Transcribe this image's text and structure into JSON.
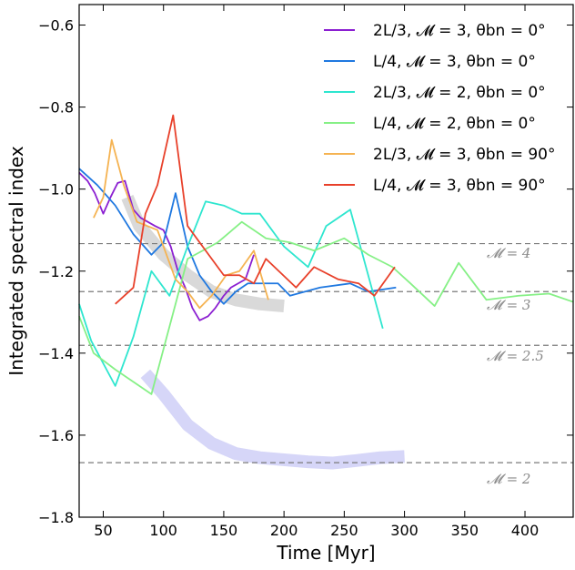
{
  "chart_data": {
    "type": "line",
    "xlabel": "Time [Myr]",
    "ylabel": "Integrated spectral index",
    "xlim": [
      30,
      440
    ],
    "ylim": [
      -1.8,
      -0.55
    ],
    "xticks": [
      50,
      100,
      150,
      200,
      250,
      300,
      350,
      400
    ],
    "yticks": [
      -1.8,
      -1.6,
      -1.4,
      -1.2,
      -1.0,
      -0.8,
      -0.6
    ],
    "ytick_labels": [
      "−1.8",
      "−1.6",
      "−1.4",
      "−1.2",
      "−1.0",
      "−0.8",
      "−0.6"
    ],
    "grid": false,
    "legend_position": "top-right",
    "reference_lines": [
      {
        "label": "𝓜 = 4",
        "y": -1.133
      },
      {
        "label": "𝓜 = 3",
        "y": -1.25
      },
      {
        "label": "𝓜 = 2.5",
        "y": -1.381
      },
      {
        "label": "𝓜 = 2",
        "y": -1.667
      }
    ],
    "bands": [
      {
        "color": "#cccccc",
        "x": [
          70,
          80,
          100,
          120,
          140,
          160,
          180,
          200
        ],
        "y": [
          -1.02,
          -1.09,
          -1.16,
          -1.21,
          -1.25,
          -1.27,
          -1.28,
          -1.285
        ]
      },
      {
        "color": "#c8c8f5",
        "x": [
          85,
          100,
          120,
          140,
          160,
          180,
          200,
          220,
          240,
          260,
          280,
          300
        ],
        "y": [
          -1.45,
          -1.5,
          -1.575,
          -1.62,
          -1.645,
          -1.655,
          -1.66,
          -1.665,
          -1.668,
          -1.662,
          -1.655,
          -1.652
        ]
      }
    ],
    "series": [
      {
        "name": "2L/3, 𝓜 = 3, θbn = 0°",
        "color": "#8b1fd1",
        "x": [
          30,
          37,
          43,
          50,
          56,
          62,
          68,
          75,
          81,
          87,
          93,
          100,
          106,
          112,
          118,
          124,
          130,
          137,
          143,
          150,
          156,
          162,
          168,
          175
        ],
        "y": [
          -0.96,
          -0.98,
          -1.01,
          -1.06,
          -1.02,
          -0.985,
          -0.98,
          -1.05,
          -1.07,
          -1.08,
          -1.09,
          -1.1,
          -1.14,
          -1.2,
          -1.24,
          -1.29,
          -1.32,
          -1.31,
          -1.29,
          -1.26,
          -1.24,
          -1.23,
          -1.22,
          -1.16
        ]
      },
      {
        "name": "L/4, 𝓜 = 3, θbn = 0°",
        "color": "#1f78e0",
        "x": [
          30,
          45,
          60,
          75,
          90,
          100,
          110,
          120,
          130,
          140,
          150,
          160,
          170,
          180,
          195,
          205,
          230,
          255,
          270,
          293
        ],
        "y": [
          -0.95,
          -0.99,
          -1.04,
          -1.11,
          -1.16,
          -1.13,
          -1.01,
          -1.14,
          -1.21,
          -1.25,
          -1.28,
          -1.25,
          -1.23,
          -1.23,
          -1.23,
          -1.26,
          -1.24,
          -1.23,
          -1.25,
          -1.24
        ]
      },
      {
        "name": "2L/3, 𝓜 = 2, θbn = 0°",
        "color": "#2ee6cf",
        "x": [
          30,
          40,
          60,
          75,
          90,
          105,
          120,
          135,
          150,
          165,
          180,
          200,
          220,
          235,
          255,
          282
        ],
        "y": [
          -1.28,
          -1.37,
          -1.48,
          -1.36,
          -1.2,
          -1.26,
          -1.14,
          -1.03,
          -1.04,
          -1.06,
          -1.06,
          -1.14,
          -1.19,
          -1.09,
          -1.05,
          -1.34
        ]
      },
      {
        "name": "L/4, 𝓜 = 2, θbn = 0°",
        "color": "#86f086",
        "x": [
          30,
          42,
          60,
          90,
          120,
          145,
          165,
          185,
          205,
          225,
          250,
          270,
          290,
          305,
          325,
          345,
          368,
          395,
          420,
          440
        ],
        "y": [
          -1.31,
          -1.4,
          -1.44,
          -1.5,
          -1.17,
          -1.13,
          -1.08,
          -1.12,
          -1.13,
          -1.15,
          -1.12,
          -1.16,
          -1.19,
          -1.23,
          -1.285,
          -1.18,
          -1.27,
          -1.26,
          -1.255,
          -1.275
        ]
      },
      {
        "name": "2L/3, 𝓜 = 3, θbn = 90°",
        "color": "#f5b352",
        "x": [
          42,
          50,
          57,
          67,
          78,
          95,
          110,
          120,
          130,
          140,
          152,
          163,
          175,
          187
        ],
        "y": [
          -1.07,
          -1.02,
          -0.88,
          -0.99,
          -1.08,
          -1.1,
          -1.22,
          -1.25,
          -1.29,
          -1.26,
          -1.21,
          -1.2,
          -1.15,
          -1.27
        ]
      },
      {
        "name": "L/4, 𝓜 = 3, θbn = 90°",
        "color": "#e8402a",
        "x": [
          60,
          75,
          85,
          95,
          108,
          120,
          135,
          150,
          163,
          175,
          185,
          210,
          225,
          245,
          262,
          275,
          292
        ],
        "y": [
          -1.28,
          -1.24,
          -1.06,
          -0.99,
          -0.82,
          -1.09,
          -1.15,
          -1.21,
          -1.21,
          -1.23,
          -1.17,
          -1.24,
          -1.19,
          -1.22,
          -1.23,
          -1.26,
          -1.19
        ]
      }
    ]
  }
}
